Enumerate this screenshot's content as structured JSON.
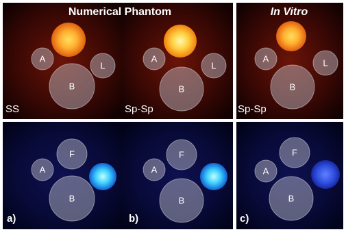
{
  "header": {
    "title": "Numerical Phantom",
    "title_italic": "In Vitro"
  },
  "panels": [
    {
      "corner_label": "SS",
      "region_labels": [
        "A",
        "L",
        "B"
      ]
    },
    {
      "corner_label": "Sp-Sp",
      "region_labels": [
        "A",
        "L",
        "B"
      ]
    },
    {
      "corner_label": "Sp-Sp",
      "region_labels": [
        "A",
        "L",
        "B"
      ]
    },
    {
      "corner_label": "a)",
      "region_labels": [
        "F",
        "A",
        "B"
      ]
    },
    {
      "corner_label": "b)",
      "region_labels": [
        "F",
        "A",
        "B"
      ]
    },
    {
      "corner_label": "c)",
      "region_labels": [
        "F",
        "A",
        "B"
      ]
    }
  ]
}
